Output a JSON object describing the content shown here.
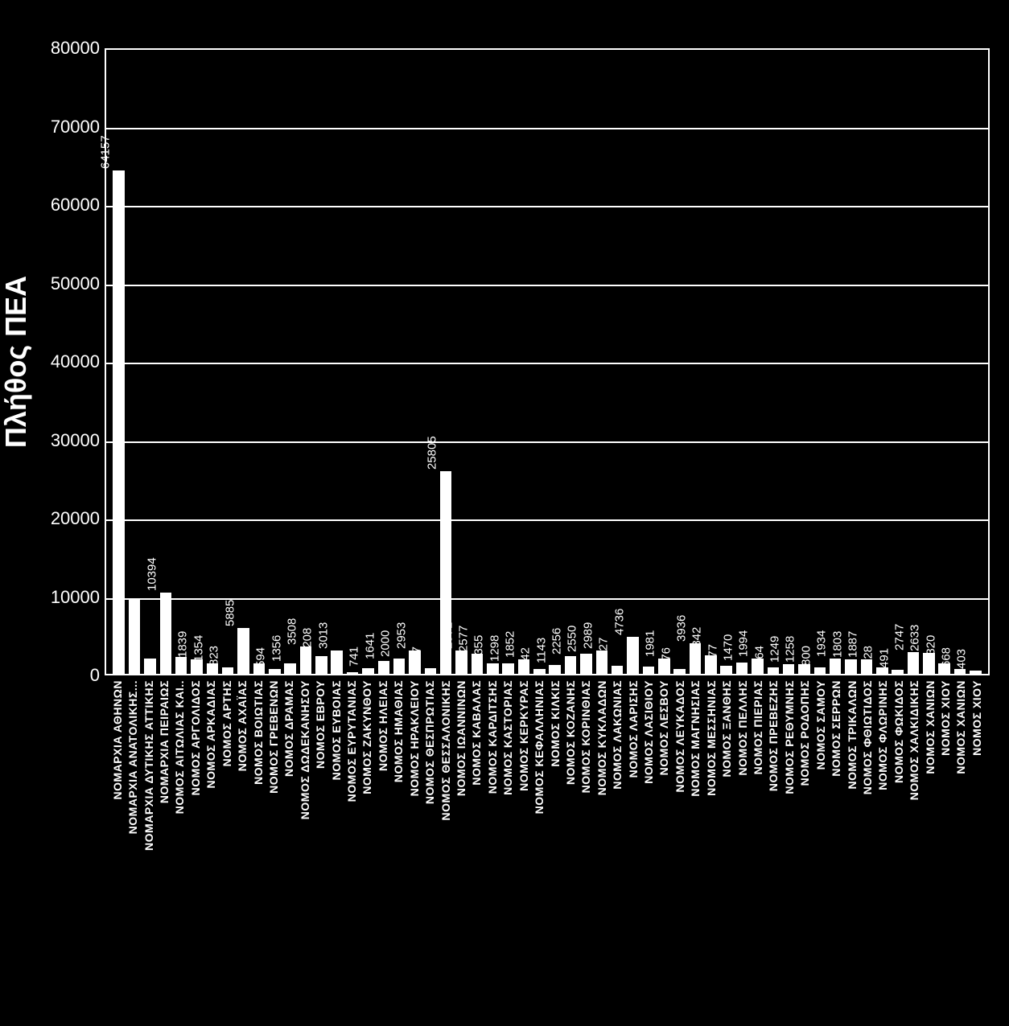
{
  "chart": {
    "type": "bar",
    "background_color": "#000000",
    "bar_color": "#ffffff",
    "grid_color": "#ffffff",
    "text_color": "#ffffff",
    "yaxis_title": "Πλήθος ΠΕΑ",
    "ymax": 80000,
    "ymin": 0,
    "ytick_step": 10000,
    "yticks": [
      0,
      10000,
      20000,
      30000,
      40000,
      50000,
      60000,
      70000,
      80000
    ],
    "title_fontsize": 36,
    "tick_fontsize": 22,
    "value_fontsize": 15,
    "label_fontsize": 14,
    "bar_width_ratio": 0.75,
    "bars": [
      {
        "label": "ΝΟΜΑΡΧΙΑ ΑΘΗΝΩΝ",
        "value": 64157
      },
      {
        "label": "ΝΟΜΑΡΧΙΑ ΑΝΑΤΟΛΙΚΗΣ...",
        "value": 9503
      },
      {
        "label": "ΝΟΜΑΡΧΙΑ ΔΥΤΙΚΗΣ ΑΤΤΙΚΗΣ",
        "value": 1980
      },
      {
        "label": "ΝΟΜΑΡΧΙΑ ΠΕΙΡΑΙΩΣ",
        "value": 10394
      },
      {
        "label": "ΝΟΜΟΣ ΑΙΤΩΛΙΑΣ ΚΑΙ..",
        "value": 2137
      },
      {
        "label": "ΝΟΜΟΣ ΑΡΓΟΛΙΔΟΣ",
        "value": 1839
      },
      {
        "label": "ΝΟΜΟΣ ΑΡΚΑΔΙΑΣ",
        "value": 1354
      },
      {
        "label": "ΝΟΜΟΣ ΑΡΤΗΣ",
        "value": 823
      },
      {
        "label": "ΝΟΜΟΣ ΑΧΑΪΑΣ",
        "value": 5885
      },
      {
        "label": "ΝΟΜΟΣ ΒΟΙΩΤΙΑΣ",
        "value": 1299
      },
      {
        "label": "ΝΟΜΟΣ ΓΡΕΒΕΝΩΝ",
        "value": 594
      },
      {
        "label": "ΝΟΜΟΣ ΔΡΑΜΑΣ",
        "value": 1356
      },
      {
        "label": "ΝΟΜΟΣ ΔΩΔΕΚΑΝΗΣΟΥ",
        "value": 3508
      },
      {
        "label": "ΝΟΜΟΣ ΕΒΡΟΥ",
        "value": 2208
      },
      {
        "label": "ΝΟΜΟΣ ΕΥΒΟΙΑΣ",
        "value": 3013
      },
      {
        "label": "ΝΟΜΟΣ ΕΥΡΥΤΑΝΙΑΣ",
        "value": 167
      },
      {
        "label": "ΝΟΜΟΣ ΖΑΚΥΝΘΟΥ",
        "value": 741
      },
      {
        "label": "ΝΟΜΟΣ ΗΛΕΙΑΣ",
        "value": 1641
      },
      {
        "label": "ΝΟΜΟΣ ΗΜΑΘΙΑΣ",
        "value": 2000
      },
      {
        "label": "ΝΟΜΟΣ ΗΡΑΚΛΕΙΟΥ",
        "value": 2953
      },
      {
        "label": "ΝΟΜΟΣ ΘΕΣΠΡΩΤΙΑΣ",
        "value": 717
      },
      {
        "label": "ΝΟΜΟΣ ΘΕΣΣΑΛΟΝΙΚΗΣ",
        "value": 25805
      },
      {
        "label": "ΝΟΜΟΣ ΙΩΑΝΝΙΝΩΝ",
        "value": 2971
      },
      {
        "label": "ΝΟΜΟΣ ΚΑΒΑΛΑΣ",
        "value": 2577
      },
      {
        "label": "ΝΟΜΟΣ ΚΑΡΔΙΤΣΗΣ",
        "value": 1355
      },
      {
        "label": "ΝΟΜΟΣ ΚΑΣΤΟΡΙΑΣ",
        "value": 1298
      },
      {
        "label": "ΝΟΜΟΣ ΚΕΡΚΥΡΑΣ",
        "value": 1852
      },
      {
        "label": "ΝΟΜΟΣ ΚΕΦΑΛΛΗΝΙΑΣ",
        "value": 642
      },
      {
        "label": "ΝΟΜΟΣ ΚΙΛΚΙΣ",
        "value": 1143
      },
      {
        "label": "ΝΟΜΟΣ ΚΟΖΑΝΗΣ",
        "value": 2256
      },
      {
        "label": "ΝΟΜΟΣ ΚΟΡΙΝΘΙΑΣ",
        "value": 2550
      },
      {
        "label": "ΝΟΜΟΣ ΚΥΚΛΑΔΩΝ",
        "value": 2989
      },
      {
        "label": "ΝΟΜΟΣ ΛΑΚΩΝΙΑΣ",
        "value": 1027
      },
      {
        "label": "ΝΟΜΟΣ ΛΑΡΙΣΗΣ",
        "value": 4736
      },
      {
        "label": "ΝΟΜΟΣ ΛΑΣΙΘΙΟΥ",
        "value": 915
      },
      {
        "label": "ΝΟΜΟΣ ΛΕΣΒΟΥ",
        "value": 1981
      },
      {
        "label": "ΝΟΜΟΣ ΛΕΥΚΑΔΟΣ",
        "value": 576
      },
      {
        "label": "ΝΟΜΟΣ ΜΑΓΝΗΣΙΑΣ",
        "value": 3936
      },
      {
        "label": "ΝΟΜΟΣ ΜΕΣΣΗΝΙΑΣ",
        "value": 2342
      },
      {
        "label": "ΝΟΜΟΣ ΞΑΝΘΗΣ",
        "value": 977
      },
      {
        "label": "ΝΟΜΟΣ ΠΕΛΛΗΣ",
        "value": 1470
      },
      {
        "label": "ΝΟΜΟΣ ΠΙΕΡΙΑΣ",
        "value": 1994
      },
      {
        "label": "ΝΟΜΟΣ ΠΡΕΒΕΖΗΣ",
        "value": 864
      },
      {
        "label": "ΝΟΜΟΣ ΡΕΘΥΜΝΗΣ",
        "value": 1249
      },
      {
        "label": "ΝΟΜΟΣ ΡΟΔΟΠΗΣ",
        "value": 1258
      },
      {
        "label": "ΝΟΜΟΣ ΣΑΜΟΥ",
        "value": 800
      },
      {
        "label": "ΝΟΜΟΣ ΣΕΡΡΩΝ",
        "value": 1934
      },
      {
        "label": "ΝΟΜΟΣ ΤΡΙΚΑΛΩΝ",
        "value": 1803
      },
      {
        "label": "ΝΟΜΟΣ ΦΘΙΩΤΙΔΟΣ",
        "value": 1887
      },
      {
        "label": "ΝΟΜΟΣ ΦΛΩΡΙΝΗΣ",
        "value": 828
      },
      {
        "label": "ΝΟΜΟΣ ΦΩΚΙΔΟΣ",
        "value": 491
      },
      {
        "label": "ΝΟΜΟΣ ΧΑΛΚΙΔΙΚΗΣ",
        "value": 2747
      },
      {
        "label": "ΝΟΜΟΣ ΧΑΝΙΩΝ",
        "value": 2633
      },
      {
        "label": "ΝΟΜΟΣ ΧΙΟΥ",
        "value": 1320
      },
      {
        "label": "ΝΟΜΟΣ ΧΑΝΙΩΝ",
        "value": 668
      },
      {
        "label": "ΝΟΜΟΣ ΧΙΟΥ",
        "value": 403
      }
    ]
  }
}
